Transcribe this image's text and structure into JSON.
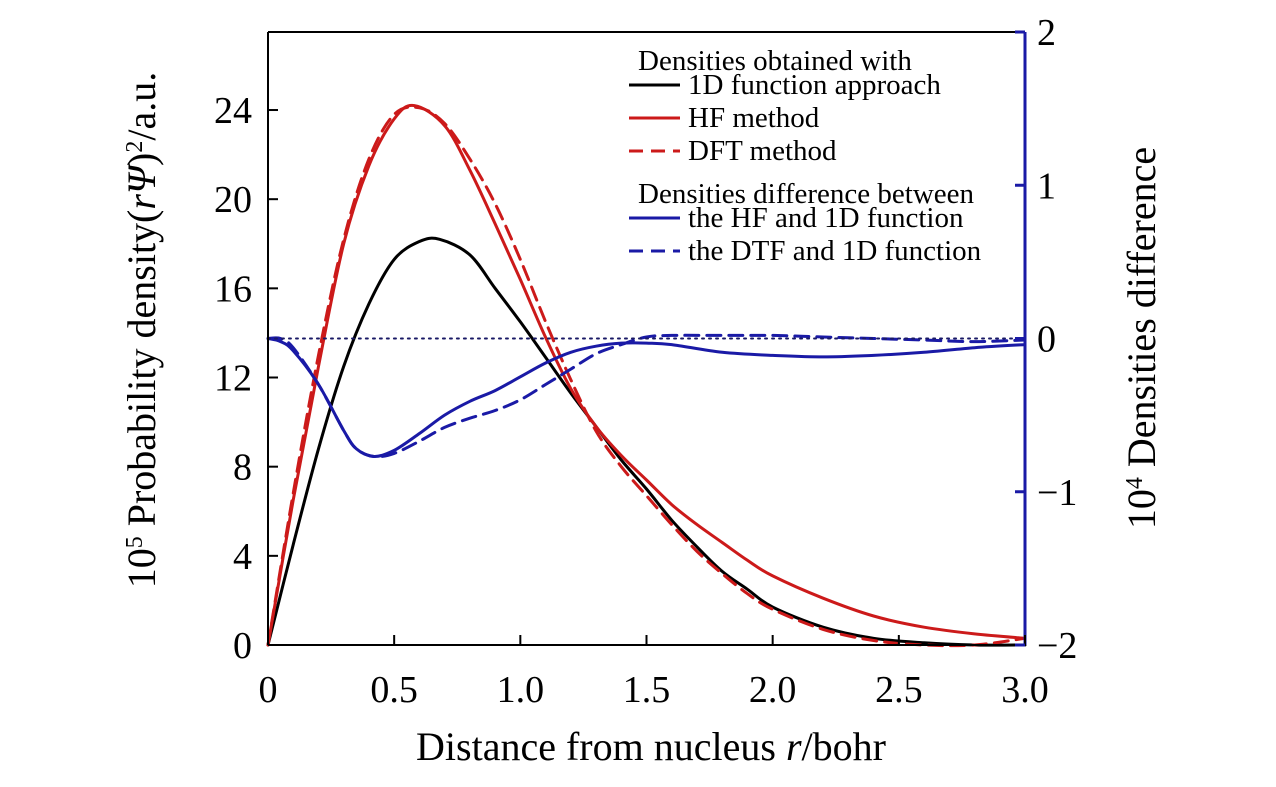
{
  "chart_data": {
    "type": "line",
    "xlabel_prefix": "Distance from nucleus ",
    "xlabel_var": "r",
    "xlabel_suffix": "/bohr",
    "ylabel_left": {
      "exp_base": "10",
      "exp_power": "5",
      "text_main": " Probability density(",
      "var_r": "r",
      "var_psi": "Ψ",
      "close": ")",
      "power2": "2",
      "suffix": "/a.u."
    },
    "ylabel_right": {
      "exp_base": "10",
      "exp_power": "4",
      "text": " Densities difference"
    },
    "xlim": [
      0,
      3.0
    ],
    "ylim_left": [
      0,
      27.5
    ],
    "ylim_right": [
      -2,
      2
    ],
    "x_ticks": [
      0,
      0.5,
      1.0,
      1.5,
      2.0,
      2.5,
      3.0
    ],
    "x_tick_labels": [
      "0",
      "0.5",
      "1.0",
      "1.5",
      "2.0",
      "2.5",
      "3.0"
    ],
    "y_left_ticks": [
      0,
      4,
      8,
      12,
      16,
      20,
      24
    ],
    "y_left_tick_labels": [
      "0",
      "4",
      "8",
      "12",
      "16",
      "20",
      "24"
    ],
    "y_right_ticks": [
      -2,
      -1,
      0,
      1,
      2
    ],
    "y_right_tick_labels": [
      "−2",
      "−1",
      "0",
      "1",
      "2"
    ],
    "legend": {
      "heading1": "Densities obtained with",
      "heading2": "Densities difference between",
      "placement": "top-right",
      "entries": [
        {
          "label": "1D function approach",
          "color": "#000000",
          "dash": "solid"
        },
        {
          "label": "HF method",
          "color": "#cc1a1a",
          "dash": "solid"
        },
        {
          "label": "DFT method",
          "color": "#cc1a1a",
          "dash": "dashed"
        },
        {
          "label": "the HF and 1D function",
          "color": "#1a1aa6",
          "dash": "solid"
        },
        {
          "label": "the DTF and 1D function",
          "color": "#1a1aa6",
          "dash": "dashed"
        }
      ]
    },
    "series": [
      {
        "name": "1D function approach",
        "axis": "left",
        "color": "#000000",
        "dash": "solid",
        "x": [
          0,
          0.1,
          0.2,
          0.3,
          0.4,
          0.5,
          0.6,
          0.68,
          0.8,
          0.9,
          1.0,
          1.1,
          1.2,
          1.3,
          1.4,
          1.5,
          1.6,
          1.7,
          1.8,
          1.9,
          2.0,
          2.2,
          2.4,
          2.6,
          2.8,
          3.0
        ],
        "y": [
          0,
          4.5,
          8.8,
          12.5,
          15.3,
          17.3,
          18.1,
          18.2,
          17.5,
          16.0,
          14.5,
          12.9,
          11.3,
          9.8,
          8.3,
          7.0,
          5.6,
          4.4,
          3.3,
          2.5,
          1.7,
          0.8,
          0.3,
          0.1,
          0.0,
          0.0
        ]
      },
      {
        "name": "HF method",
        "axis": "left",
        "color": "#cc1a1a",
        "dash": "solid",
        "x": [
          0,
          0.1,
          0.2,
          0.3,
          0.4,
          0.5,
          0.58,
          0.7,
          0.8,
          0.9,
          1.0,
          1.1,
          1.2,
          1.3,
          1.4,
          1.5,
          1.6,
          1.7,
          1.8,
          1.9,
          2.0,
          2.2,
          2.4,
          2.6,
          2.8,
          3.0
        ],
        "y": [
          0,
          6.5,
          12.5,
          18.0,
          21.5,
          23.6,
          24.2,
          23.3,
          21.3,
          18.9,
          16.4,
          13.8,
          11.5,
          9.8,
          8.5,
          7.4,
          6.3,
          5.4,
          4.6,
          3.8,
          3.1,
          2.1,
          1.3,
          0.8,
          0.5,
          0.3
        ]
      },
      {
        "name": "DFT method",
        "axis": "left",
        "color": "#cc1a1a",
        "dash": "dashed",
        "x": [
          0,
          0.1,
          0.2,
          0.3,
          0.4,
          0.5,
          0.6,
          0.7,
          0.8,
          0.9,
          1.0,
          1.1,
          1.2,
          1.3,
          1.4,
          1.5,
          1.6,
          1.7,
          1.8,
          1.9,
          2.0,
          2.2,
          2.4,
          2.6,
          2.8,
          3.0
        ],
        "y": [
          0,
          6.8,
          13.0,
          18.2,
          21.8,
          23.8,
          24.1,
          23.4,
          21.8,
          19.8,
          17.3,
          14.5,
          11.9,
          9.6,
          8.0,
          6.7,
          5.4,
          4.2,
          3.2,
          2.3,
          1.6,
          0.7,
          0.2,
          0.0,
          0.0,
          0.3
        ]
      },
      {
        "name": "the HF and 1D function",
        "axis": "right",
        "color": "#1a1aa6",
        "dash": "solid",
        "x": [
          0,
          0.05,
          0.1,
          0.2,
          0.3,
          0.35,
          0.42,
          0.5,
          0.6,
          0.7,
          0.8,
          0.9,
          1.0,
          1.1,
          1.2,
          1.3,
          1.4,
          1.5,
          1.6,
          1.8,
          2.0,
          2.2,
          2.4,
          2.6,
          2.8,
          3.0
        ],
        "y": [
          0,
          -0.02,
          -0.08,
          -0.3,
          -0.6,
          -0.72,
          -0.77,
          -0.73,
          -0.62,
          -0.5,
          -0.41,
          -0.34,
          -0.25,
          -0.16,
          -0.09,
          -0.05,
          -0.03,
          -0.03,
          -0.04,
          -0.09,
          -0.11,
          -0.12,
          -0.11,
          -0.09,
          -0.06,
          -0.04
        ]
      },
      {
        "name": "the DTF and 1D function",
        "axis": "right",
        "color": "#1a1aa6",
        "dash": "dashed",
        "x": [
          0,
          0.05,
          0.1,
          0.2,
          0.3,
          0.35,
          0.42,
          0.5,
          0.6,
          0.7,
          0.8,
          0.9,
          1.0,
          1.1,
          1.2,
          1.3,
          1.4,
          1.5,
          1.6,
          1.8,
          2.0,
          2.2,
          2.4,
          2.6,
          2.8,
          3.0
        ],
        "y": [
          0,
          0.0,
          -0.06,
          -0.3,
          -0.6,
          -0.72,
          -0.77,
          -0.75,
          -0.67,
          -0.58,
          -0.52,
          -0.47,
          -0.4,
          -0.3,
          -0.2,
          -0.1,
          -0.04,
          0.01,
          0.02,
          0.02,
          0.02,
          0.01,
          0.0,
          -0.01,
          -0.02,
          -0.01
        ]
      },
      {
        "name": "zero reference",
        "axis": "right",
        "color": "#1a1a66",
        "dash": "dotted",
        "x": [
          0,
          3.0
        ],
        "y": [
          0,
          0
        ]
      }
    ]
  }
}
